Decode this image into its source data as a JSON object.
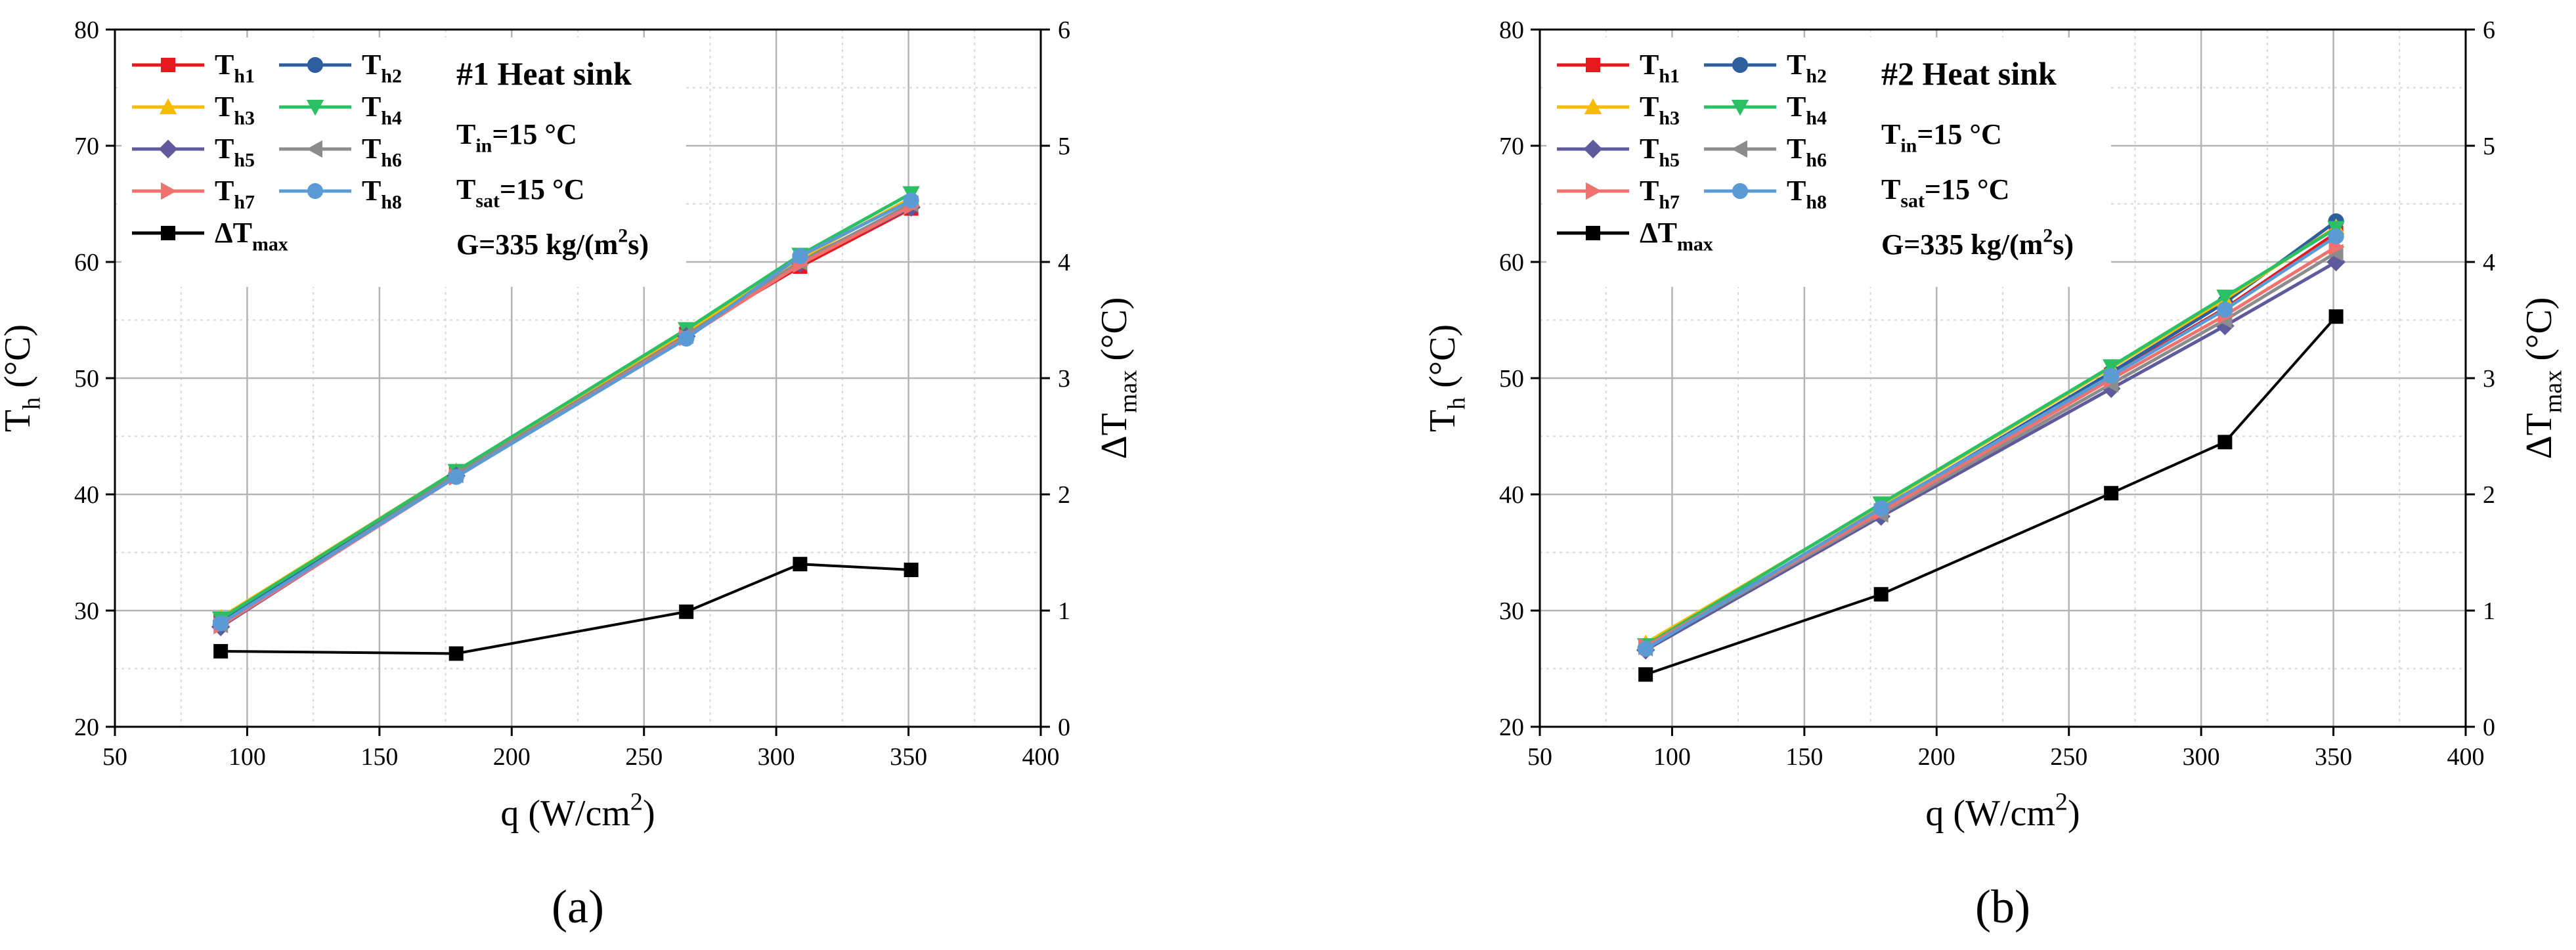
{
  "chart_data": [
    {
      "type": "line",
      "panel_label": "(a)",
      "xlabel": "q (W/cm²)",
      "ylabel_left": "Th (°C)",
      "ylabel_right": "ΔTmax (°C)",
      "xlim": [
        50,
        400
      ],
      "ylim_left": [
        20,
        80
      ],
      "ylim_right": [
        0,
        6
      ],
      "xticks": [
        50,
        100,
        150,
        200,
        250,
        300,
        350,
        400
      ],
      "yticks_left": [
        20,
        30,
        40,
        50,
        60,
        70,
        80
      ],
      "yticks_right": [
        0,
        1,
        2,
        3,
        4,
        5,
        6
      ],
      "grid": true,
      "legend_position": "top-left",
      "annotation": {
        "title": "#1 Heat sink",
        "lines": [
          "Tin=15 °C",
          "Tsat=15 °C",
          "G=335 kg/(m²s)"
        ]
      },
      "x": [
        90,
        179,
        266,
        309,
        351
      ],
      "series": [
        {
          "name": "Th1",
          "color": "#e8191e",
          "marker": "square",
          "axis": "left",
          "values": [
            29.2,
            41.8,
            53.8,
            59.6,
            64.6
          ]
        },
        {
          "name": "Th2",
          "color": "#2d5f9e",
          "marker": "circle",
          "axis": "left",
          "values": [
            29.0,
            41.7,
            53.8,
            60.1,
            64.8
          ]
        },
        {
          "name": "Th3",
          "color": "#f5bc00",
          "marker": "triangle-up",
          "axis": "left",
          "values": [
            29.4,
            42.0,
            54.0,
            60.3,
            65.5
          ]
        },
        {
          "name": "Th4",
          "color": "#2cc064",
          "marker": "triangle-down",
          "axis": "left",
          "values": [
            29.3,
            42.0,
            54.2,
            60.6,
            65.9
          ]
        },
        {
          "name": "Th5",
          "color": "#5e5a9c",
          "marker": "diamond",
          "axis": "left",
          "values": [
            28.6,
            41.6,
            53.6,
            59.9,
            64.7
          ]
        },
        {
          "name": "Th6",
          "color": "#8c8c8c",
          "marker": "triangle-left",
          "axis": "left",
          "values": [
            28.8,
            41.7,
            53.7,
            60.0,
            65.0
          ]
        },
        {
          "name": "Th7",
          "color": "#f0726f",
          "marker": "triangle-right",
          "axis": "left",
          "values": [
            28.7,
            41.5,
            53.5,
            59.8,
            64.8
          ]
        },
        {
          "name": "Th8",
          "color": "#5b9bd5",
          "marker": "circle",
          "axis": "left",
          "values": [
            28.9,
            41.5,
            53.4,
            60.5,
            65.3
          ]
        },
        {
          "name": "ΔTmax",
          "color": "#000000",
          "marker": "square",
          "axis": "right",
          "values": [
            0.65,
            0.63,
            0.99,
            1.4,
            1.35
          ]
        }
      ]
    },
    {
      "type": "line",
      "panel_label": "(b)",
      "xlabel": "q (W/cm²)",
      "ylabel_left": "Th (°C)",
      "ylabel_right": "ΔTmax (°C)",
      "xlim": [
        50,
        400
      ],
      "ylim_left": [
        20,
        80
      ],
      "ylim_right": [
        0,
        6
      ],
      "xticks": [
        50,
        100,
        150,
        200,
        250,
        300,
        350,
        400
      ],
      "yticks_left": [
        20,
        30,
        40,
        50,
        60,
        70,
        80
      ],
      "yticks_right": [
        0,
        1,
        2,
        3,
        4,
        5,
        6
      ],
      "grid": true,
      "legend_position": "top-left",
      "annotation": {
        "title": "#2 Heat sink",
        "lines": [
          "Tin=15 °C",
          "Tsat=15 °C",
          "G=335 kg/(m²s)"
        ]
      },
      "x": [
        90,
        179,
        266,
        309,
        351
      ],
      "series": [
        {
          "name": "Th1",
          "color": "#e8191e",
          "marker": "square",
          "axis": "left",
          "values": [
            26.9,
            38.6,
            50.3,
            56.0,
            62.5
          ]
        },
        {
          "name": "Th2",
          "color": "#2d5f9e",
          "marker": "circle",
          "axis": "left",
          "values": [
            26.8,
            38.7,
            50.5,
            56.5,
            63.5
          ]
        },
        {
          "name": "Th3",
          "color": "#f5bc00",
          "marker": "triangle-up",
          "axis": "left",
          "values": [
            27.2,
            39.1,
            50.9,
            56.8,
            63.0
          ]
        },
        {
          "name": "Th4",
          "color": "#2cc064",
          "marker": "triangle-down",
          "axis": "left",
          "values": [
            27.0,
            39.2,
            51.0,
            57.0,
            62.9
          ]
        },
        {
          "name": "Th5",
          "color": "#5e5a9c",
          "marker": "diamond",
          "axis": "left",
          "values": [
            26.6,
            38.1,
            49.1,
            54.5,
            60.0
          ]
        },
        {
          "name": "Th6",
          "color": "#8c8c8c",
          "marker": "triangle-left",
          "axis": "left",
          "values": [
            26.8,
            38.3,
            49.5,
            55.0,
            60.8
          ]
        },
        {
          "name": "Th7",
          "color": "#f0726f",
          "marker": "triangle-right",
          "axis": "left",
          "values": [
            26.9,
            38.5,
            49.9,
            55.4,
            61.3
          ]
        },
        {
          "name": "Th8",
          "color": "#5b9bd5",
          "marker": "circle",
          "axis": "left",
          "values": [
            26.7,
            38.8,
            50.2,
            55.9,
            62.2
          ]
        },
        {
          "name": "ΔTmax",
          "color": "#000000",
          "marker": "square",
          "axis": "right",
          "values": [
            0.45,
            1.14,
            2.01,
            2.45,
            3.53
          ]
        }
      ]
    }
  ]
}
